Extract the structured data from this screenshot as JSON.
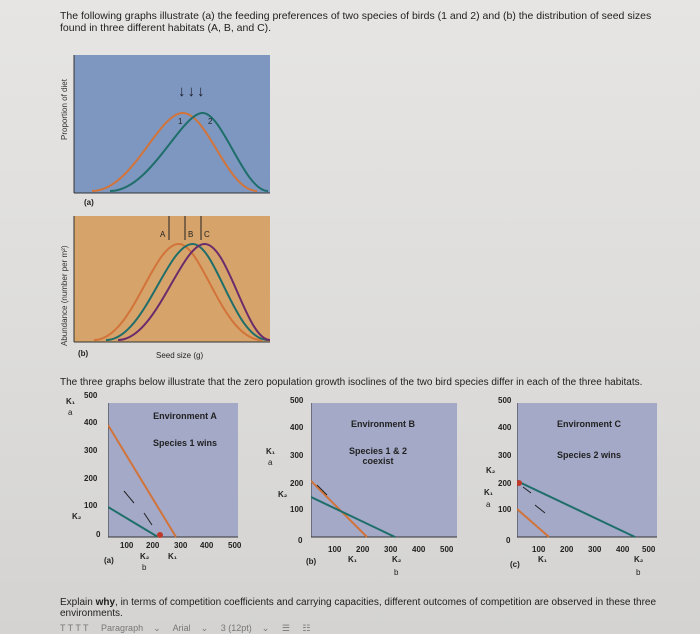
{
  "intro_text": "The following graphs illustrate (a) the feeding preferences of two species of birds (1 and 2) and (b) the distribution of seed sizes found in three different habitats (A, B, and C).",
  "top_graph": {
    "ylabel": "Proportion of diet",
    "panel_label": "(a)",
    "curve_labels": [
      "1",
      "2"
    ],
    "arrows": "↓↓↓"
  },
  "bottom_graph": {
    "ylabel": "Abundance (number per m²)",
    "panel_label": "(b)",
    "xlabel": "Seed size (g)",
    "habitat_labels": [
      "A",
      "B",
      "C"
    ]
  },
  "middle_text": "The three graphs below illustrate that the zero population growth isoclines of the two bird species differ in each of the three habitats.",
  "env_graphs": [
    {
      "panel": "(a)",
      "title": "Environment A",
      "outcome": "Species 1 wins",
      "y_ticks": [
        "500",
        "400",
        "300",
        "200",
        "100",
        "0"
      ],
      "x_ticks": [
        "100",
        "200",
        "300",
        "400",
        "500"
      ],
      "y_axis_labels": [
        "K₁",
        "a",
        "K₂"
      ],
      "x_axis_labels": [
        "K₂",
        "b",
        "K₁"
      ]
    },
    {
      "panel": "(b)",
      "title": "Environment B",
      "outcome": "Species 1 & 2 coexist",
      "y_ticks": [
        "500",
        "400",
        "300",
        "200",
        "100",
        "0"
      ],
      "x_ticks": [
        "100",
        "200",
        "300",
        "400",
        "500"
      ],
      "y_axis_labels": [
        "K₁",
        "a",
        "K₂"
      ],
      "x_axis_labels": [
        "K₁",
        "K₂",
        "b"
      ]
    },
    {
      "panel": "(c)",
      "title": "Environment C",
      "outcome": "Species 2 wins",
      "y_ticks": [
        "500",
        "400",
        "300",
        "200",
        "100",
        "0"
      ],
      "x_ticks": [
        "100",
        "200",
        "300",
        "400",
        "500"
      ],
      "y_axis_labels": [
        "K₂",
        "K₁",
        "a"
      ],
      "x_axis_labels": [
        "K₁",
        "K₂",
        "b"
      ]
    }
  ],
  "question_prefix": "Explain ",
  "question_bold": "why",
  "question_rest": ", in terms of competition coefficients and carrying capacities, different outcomes of competition are observed in these three environments.",
  "toolbar": {
    "format_buttons": "T  T  T  T",
    "paragraph": "Paragraph",
    "font": "Arial",
    "size": "3 (12pt)"
  },
  "colors": {
    "top_bg": "#7d97c0",
    "bottom_bg": "#d6a36a",
    "env_bg": "#a3a9c7",
    "curve_orange": "#d2743a",
    "curve_teal": "#1f6e6a",
    "curve_purple": "#6a2c6a"
  }
}
